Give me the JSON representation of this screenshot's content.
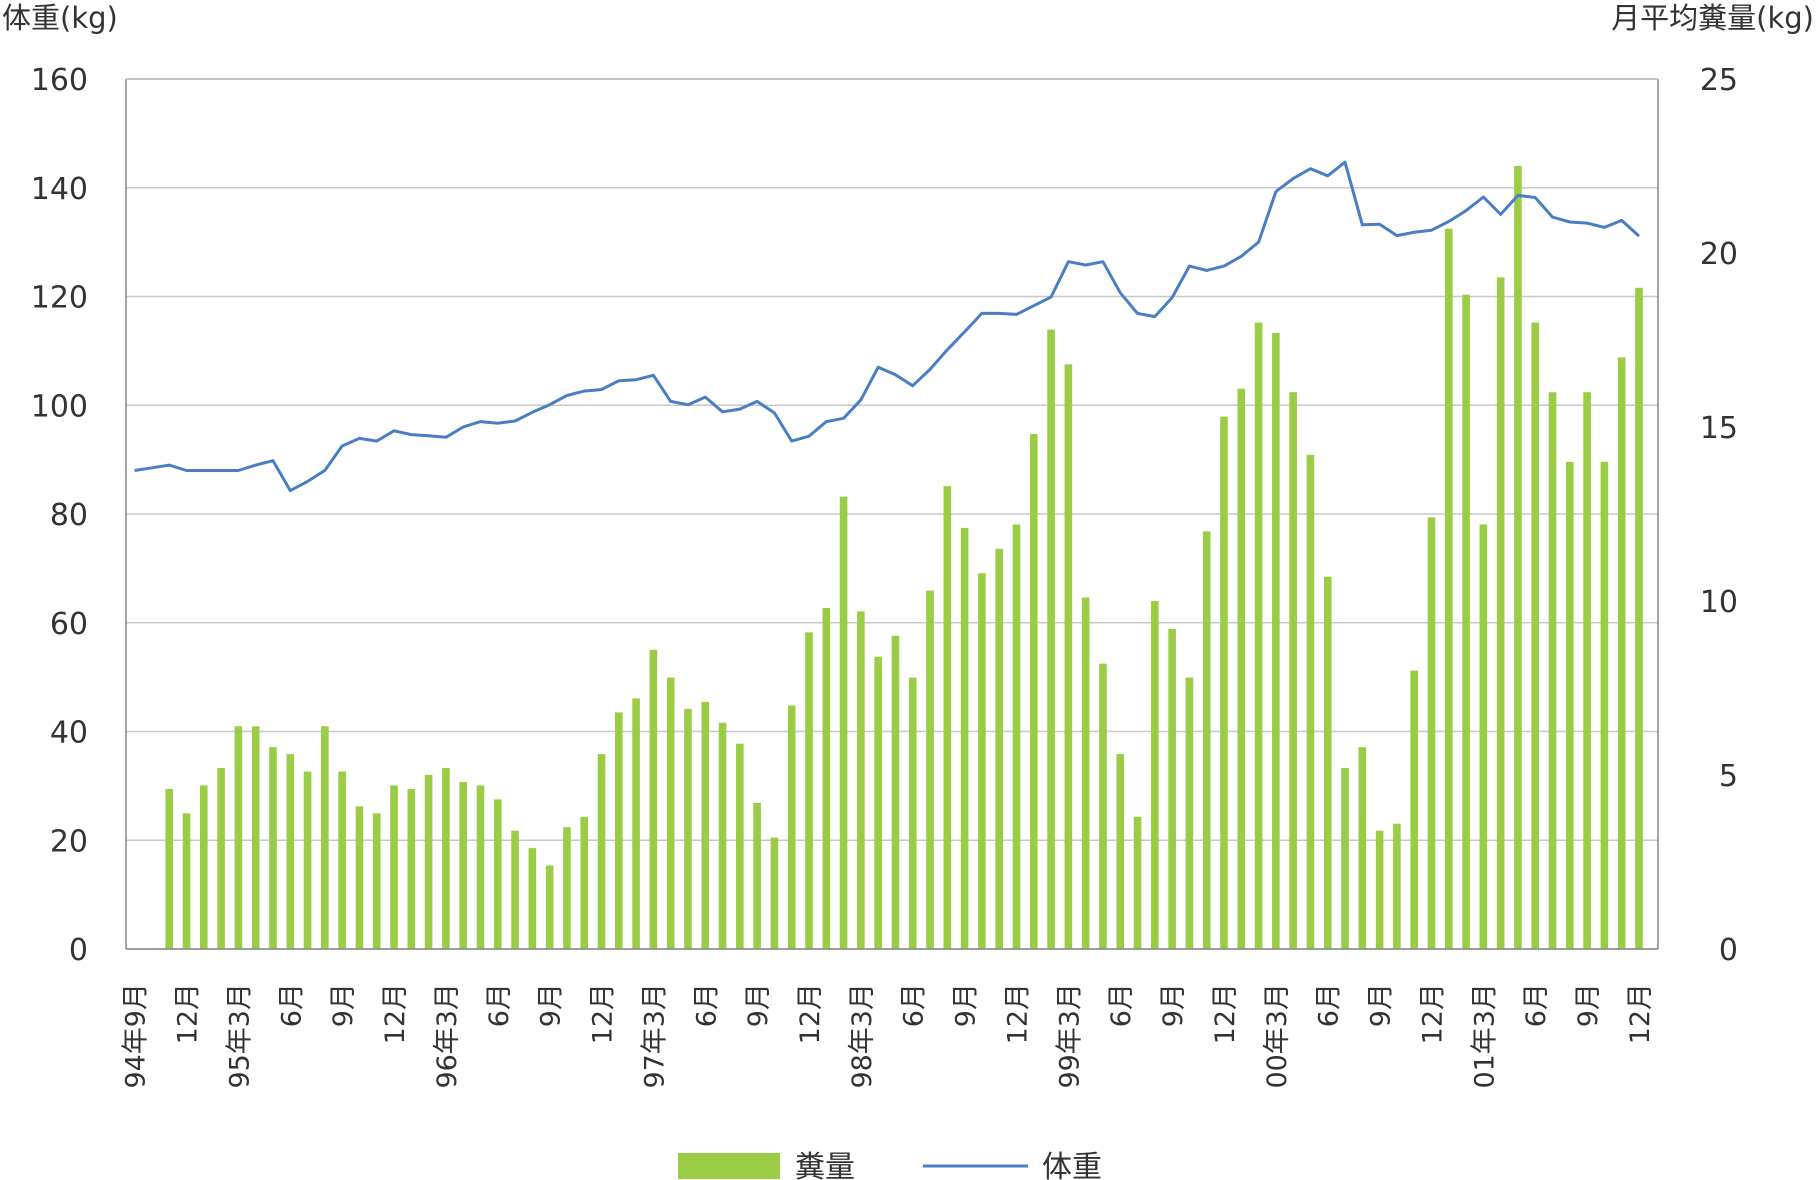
{
  "chart_data": {
    "type": "bar+line",
    "left_axis_title": "体重(kg)",
    "right_axis_title": "月平均糞量(kg)",
    "left_ylim": [
      0,
      160
    ],
    "left_ticks": [
      "0",
      "20",
      "40",
      "60",
      "80",
      "100",
      "120",
      "140",
      "160"
    ],
    "right_ylim": [
      0,
      25
    ],
    "right_ticks": [
      "0",
      "5",
      "10",
      "15",
      "20",
      "25"
    ],
    "grid": true,
    "legend_position": "bottom",
    "x_labels": [
      "94年9月",
      "12月",
      "95年3月",
      "6月",
      "9月",
      "12月",
      "96年3月",
      "6月",
      "9月",
      "12月",
      "97年3月",
      "6月",
      "9月",
      "12月",
      "98年3月",
      "6月",
      "9月",
      "12月",
      "99年3月",
      "6月",
      "9月",
      "12月",
      "00年3月",
      "6月",
      "9月",
      "12月",
      "01年3月",
      "6月",
      "9月",
      "12月"
    ],
    "bar_color": "#9ACD45",
    "line_color": "#4A7EC3",
    "series": [
      {
        "name": "糞量",
        "axis": "right",
        "type": "bar",
        "values": [
          null,
          null,
          4.6,
          3.9,
          4.7,
          5.2,
          6.4,
          6.4,
          5.8,
          5.6,
          5.1,
          6.4,
          5.1,
          4.1,
          3.9,
          4.7,
          4.6,
          5.0,
          5.2,
          4.8,
          4.7,
          4.3,
          3.4,
          2.9,
          2.4,
          3.5,
          3.8,
          5.6,
          6.8,
          7.2,
          8.6,
          7.8,
          6.9,
          7.1,
          6.5,
          5.9,
          4.2,
          3.2,
          7.0,
          9.1,
          9.8,
          13.0,
          9.7,
          8.4,
          9.0,
          7.8,
          10.3,
          13.3,
          12.1,
          10.8,
          11.5,
          12.2,
          14.8,
          17.8,
          16.8,
          10.1,
          8.2,
          5.6,
          3.8,
          10.0,
          9.2,
          7.8,
          12.0,
          15.3,
          16.1,
          18.0,
          17.7,
          16.0,
          14.2,
          10.7,
          5.2,
          5.8,
          3.4,
          3.6,
          8.0,
          12.4,
          20.7,
          18.8,
          12.2,
          19.3,
          22.5,
          18.0,
          16.0,
          14.0,
          16.0,
          14.0,
          17.0,
          19.0
        ]
      },
      {
        "name": "体重",
        "axis": "left",
        "type": "line",
        "values": [
          88.0,
          88.5,
          89.0,
          88.0,
          88.0,
          88.0,
          88.0,
          89.0,
          89.8,
          84.3,
          86.0,
          88.0,
          92.5,
          93.9,
          93.4,
          95.3,
          94.6,
          94.4,
          94.1,
          96.0,
          97.0,
          96.7,
          97.1,
          98.7,
          100.1,
          101.8,
          102.6,
          102.9,
          104.5,
          104.7,
          105.5,
          100.7,
          100.1,
          101.5,
          98.8,
          99.3,
          100.7,
          98.6,
          93.4,
          94.3,
          97.0,
          97.6,
          101.0,
          107.0,
          105.6,
          103.6,
          106.6,
          110.2,
          113.5,
          116.9,
          116.9,
          116.7,
          118.3,
          119.9,
          126.4,
          125.8,
          126.4,
          120.7,
          116.9,
          116.3,
          119.8,
          125.6,
          124.8,
          125.6,
          127.4,
          130.0,
          139.3,
          141.7,
          143.5,
          142.2,
          144.7,
          133.2,
          133.3,
          131.2,
          131.8,
          132.2,
          133.8,
          135.8,
          138.3,
          135.1,
          138.6,
          138.2,
          134.6,
          133.7,
          133.5,
          132.7,
          134.0,
          131.1
        ]
      }
    ]
  }
}
